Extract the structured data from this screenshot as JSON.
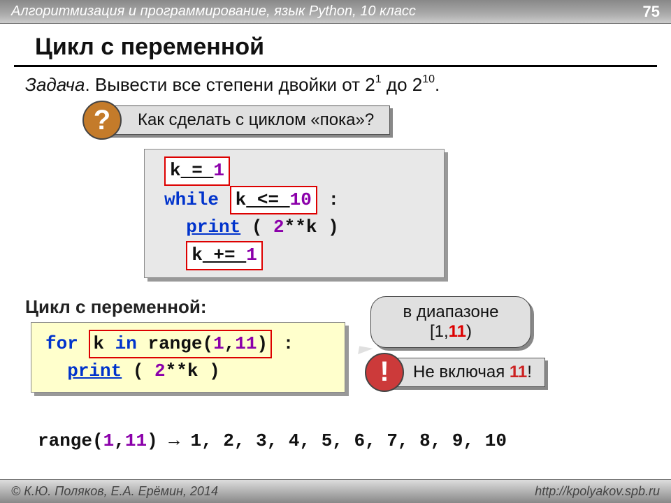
{
  "header": {
    "course": "Алгоритмизация и программирование, язык Python, 10 класс",
    "page": "75"
  },
  "title": "Цикл с переменной",
  "task": {
    "label": "Задача",
    "text": ". Вывести все степени двойки от 2",
    "sup1": "1",
    "mid": " до 2",
    "sup2": "10",
    "end": "."
  },
  "question": {
    "badge": "?",
    "text": "Как сделать с циклом «пока»?"
  },
  "code1": {
    "l1a": "k",
    "l1b": " = ",
    "l1c": "1",
    "l2a": "while",
    "l2b": "k",
    "l2c": " <= ",
    "l2d": "10",
    "l2e": " :",
    "l3a": "print",
    "l3b": " ( ",
    "l3c": "2",
    "l3d": "**k )",
    "l4a": "k",
    "l4b": " += ",
    "l4c": "1"
  },
  "subtitle": "Цикл с переменной:",
  "code2": {
    "l1a": "for",
    "l1b": "k ",
    "l1c": "in",
    "l1d": " range(",
    "l1e": "1",
    "l1f": ",",
    "l1g": "11",
    "l1h": ")",
    "l1i": " :",
    "l2a": "print",
    "l2b": " ( ",
    "l2c": "2",
    "l2d": "**k )"
  },
  "speech": {
    "line1": "в диапазоне",
    "line2a": "[1,",
    "line2b": "11",
    "line2c": ")"
  },
  "exclaim": {
    "badge": "!",
    "text1": "Не включая ",
    "text2": "11",
    "text3": "!"
  },
  "rangeline": {
    "a": "range(",
    "b": "1",
    "c": ",",
    "d": "11",
    "e": ")  →  1, 2, 3, 4, 5, 6, 7, 8, 9, 10"
  },
  "footer": {
    "left": "© К.Ю. Поляков, Е.А. Ерёмин, 2014",
    "right": "http://kpolyakov.spb.ru"
  }
}
